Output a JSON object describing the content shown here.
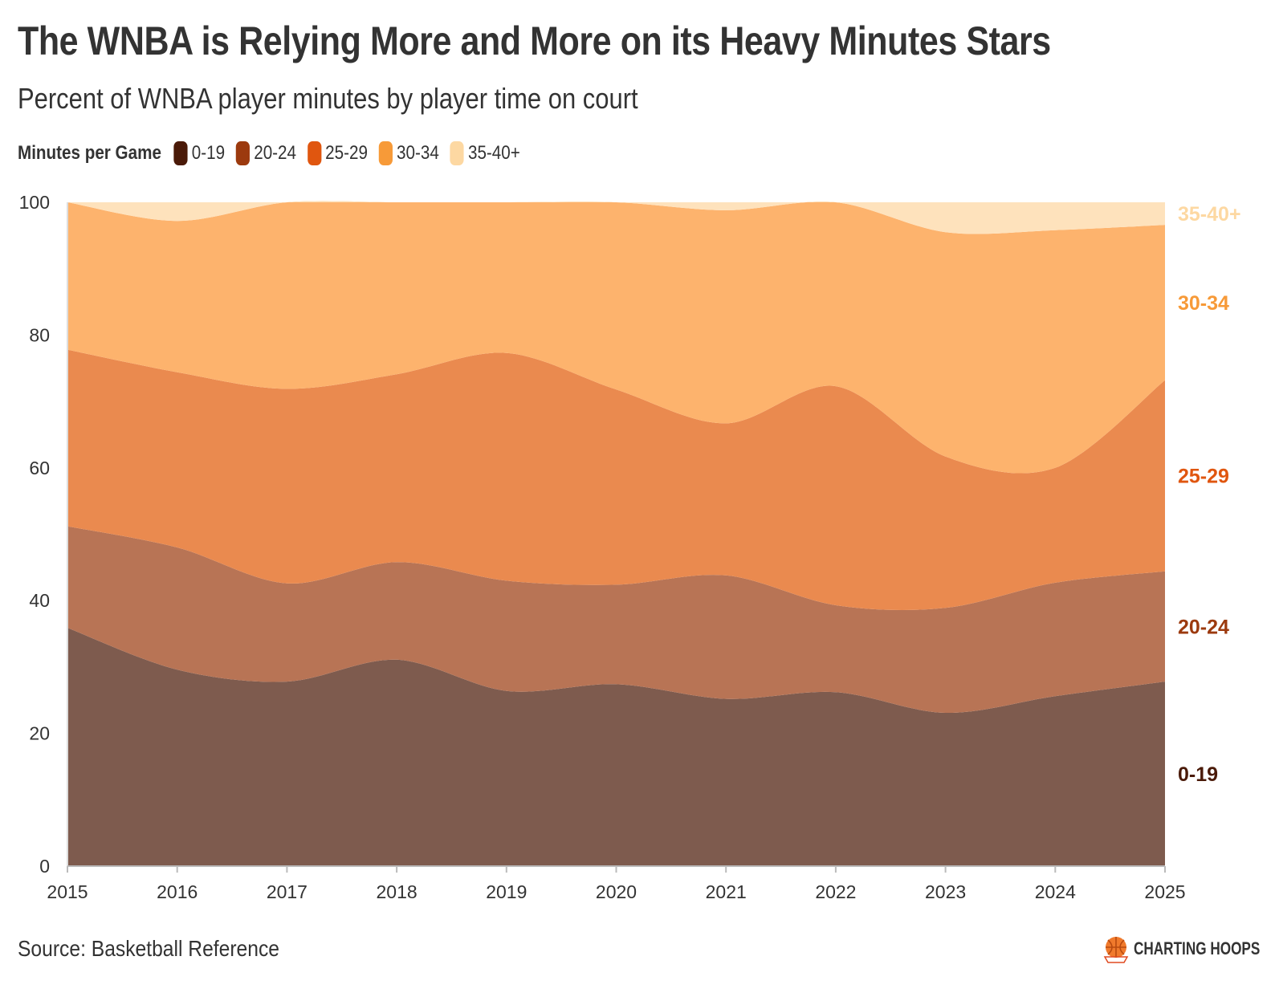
{
  "title": "The WNBA is Relying More and More on its Heavy Minutes Stars",
  "subtitle": "Percent of WNBA player minutes by player time on court",
  "legend": {
    "title": "Minutes per Game",
    "items": [
      {
        "label": "0-19",
        "color": "#4a1a08"
      },
      {
        "label": "20-24",
        "color": "#9c3a0e"
      },
      {
        "label": "25-29",
        "color": "#e0560f"
      },
      {
        "label": "30-34",
        "color": "#f79a38"
      },
      {
        "label": "35-40+",
        "color": "#fdd8a2"
      }
    ]
  },
  "source": "Source: Basketball Reference",
  "brand": "CHARTING HOOPS",
  "chart_data": {
    "type": "area",
    "stacked": true,
    "x": [
      2015,
      2016,
      2017,
      2018,
      2019,
      2020,
      2021,
      2022,
      2023,
      2024,
      2025
    ],
    "x_tick_labels": [
      "2015",
      "2016",
      "2017",
      "2018",
      "2019",
      "2020",
      "2021",
      "2022",
      "2023",
      "2024",
      "2025"
    ],
    "ylim": [
      0,
      100
    ],
    "y_ticks": [
      0,
      20,
      40,
      60,
      80,
      100
    ],
    "y_tick_labels": [
      "0",
      "20",
      "40",
      "60",
      "80",
      "100"
    ],
    "series": [
      {
        "name": "0-19",
        "label": "0-19",
        "fill": "#7e5b4e",
        "label_color": "#4a1a08",
        "values": [
          35.9,
          29.6,
          27.8,
          31.1,
          26.4,
          27.4,
          25.2,
          26.2,
          23.1,
          25.6,
          27.8
        ]
      },
      {
        "name": "20-24",
        "label": "20-24",
        "fill": "#b87455",
        "label_color": "#9c3a0e",
        "values": [
          15.3,
          18.4,
          14.8,
          14.7,
          16.6,
          15.0,
          18.6,
          13.1,
          15.8,
          17.1,
          16.6
        ]
      },
      {
        "name": "25-29",
        "label": "25-29",
        "fill": "#ea8a4f",
        "label_color": "#e0560f",
        "values": [
          26.6,
          26.4,
          29.3,
          28.3,
          34.3,
          29.4,
          22.9,
          33.0,
          22.8,
          17.3,
          28.8
        ]
      },
      {
        "name": "30-34",
        "label": "30-34",
        "fill": "#fdb36d",
        "label_color": "#f79a38",
        "values": [
          22.2,
          22.8,
          28.1,
          25.9,
          22.7,
          28.2,
          32.1,
          27.7,
          33.8,
          35.8,
          23.4
        ]
      },
      {
        "name": "35-40+",
        "label": "35-40+",
        "fill": "#fee2bc",
        "label_color": "#fdd8a2",
        "values": [
          0.0,
          2.8,
          0.0,
          0.0,
          0.0,
          0.0,
          1.2,
          0.0,
          4.5,
          4.2,
          3.4
        ]
      }
    ]
  }
}
